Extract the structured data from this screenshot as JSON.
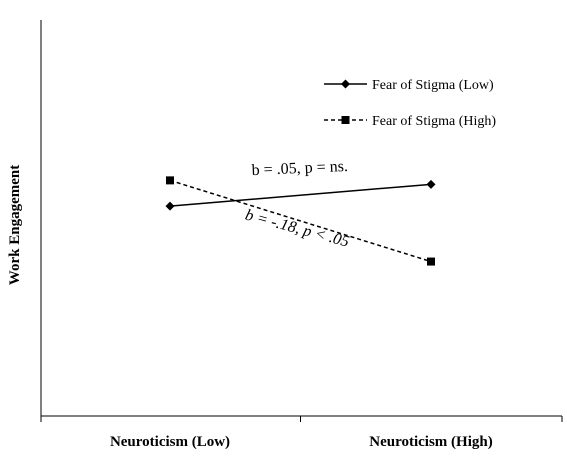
{
  "chart_data": {
    "type": "line",
    "title": "",
    "xlabel": "",
    "ylabel": "Work Engagement",
    "categories": [
      "Neuroticism (Low)",
      "Neuroticism (High)"
    ],
    "ylim": [
      0,
      10
    ],
    "grid": false,
    "legend_position": "top-right",
    "series": [
      {
        "name": "Fear of Stigma (Low)",
        "values": [
          5.3,
          5.85
        ],
        "line_style": "solid",
        "marker": "diamond",
        "color": "#000000"
      },
      {
        "name": "Fear of Stigma (High)",
        "values": [
          5.95,
          3.9
        ],
        "line_style": "dashed",
        "marker": "square",
        "color": "#000000"
      }
    ],
    "annotations": [
      {
        "text": "b = .05, p = ns.",
        "series": 0
      },
      {
        "text": "b = -.18, p < .05",
        "series": 1
      }
    ]
  }
}
